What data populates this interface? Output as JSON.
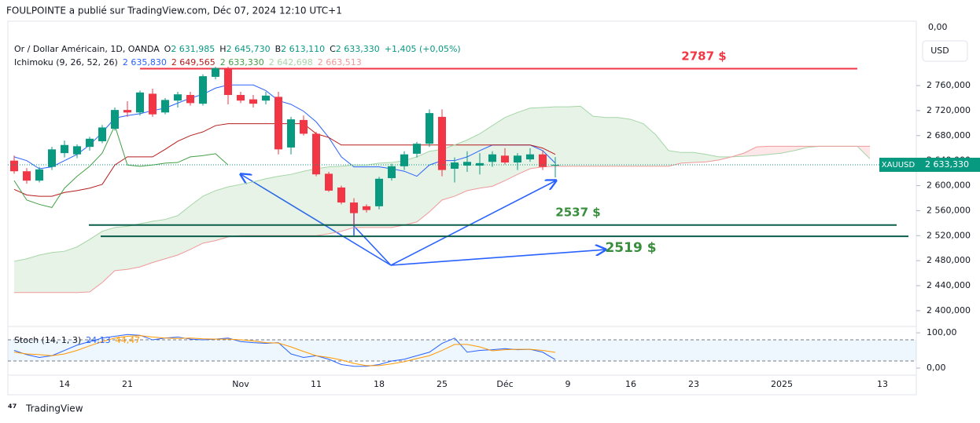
{
  "header": {
    "publisher": "FOULPOINTE a publié sur TradingView.com, Déc 07, 2024 12:10 UTC+1",
    "brand": "TradingView",
    "currency": "USD",
    "top_axis_label": "0,00"
  },
  "chart_data": [
    {
      "type": "candlestick",
      "title": "Or / Dollar Américain, 1D, OANDA",
      "ohlc_legend": [
        {
          "key": "O",
          "value": "2 631,985"
        },
        {
          "key": "H",
          "value": "2 645,730"
        },
        {
          "key": "B",
          "value": "2 613,110"
        },
        {
          "key": "C",
          "value": "2 633,330"
        }
      ],
      "change": "+1,405 (+0,05%)",
      "symbol": "XAUUSD",
      "last_label": "2 633,330",
      "up_color": "#089981",
      "down_color": "#f23645",
      "categories": [
        null,
        null,
        null,
        null,
        "14",
        null,
        null,
        null,
        null,
        "21",
        null,
        null,
        null,
        null,
        null,
        null,
        null,
        null,
        "Nov",
        null,
        null,
        null,
        null,
        null,
        "11",
        null,
        null,
        null,
        null,
        "18",
        null,
        null,
        null,
        null,
        "25",
        null,
        null,
        null,
        null,
        "Déc",
        null,
        null,
        null,
        null,
        "9",
        null,
        null,
        null,
        null,
        "16",
        null,
        null,
        null,
        null,
        "23",
        null,
        null,
        null,
        null,
        null,
        null,
        "2025",
        null,
        null,
        null,
        null,
        null,
        null,
        null,
        "13",
        null,
        null
      ],
      "open": [
        2640,
        2623,
        2608,
        2630,
        2652,
        2650,
        2662,
        2671,
        2691,
        2721,
        2717,
        2747,
        2717,
        2736,
        2745,
        2731,
        2774,
        2788,
        2745,
        2738,
        2736,
        2742,
        2661,
        2705,
        2683,
        2619,
        2597,
        2573,
        2567,
        2567,
        2612,
        2631,
        2651,
        2667,
        2710,
        2627,
        2632,
        2632,
        2638,
        2648,
        2637,
        2642,
        2650,
        2631.985,
        null,
        null,
        null,
        null,
        null,
        null,
        null,
        null,
        null,
        null,
        null,
        null,
        null,
        null,
        null,
        null,
        null,
        null,
        null,
        null,
        null,
        null,
        null,
        null,
        null,
        null,
        null,
        null
      ],
      "high": [
        2648,
        2628,
        2630,
        2662,
        2672,
        2666,
        2678,
        2697,
        2725,
        2735,
        2752,
        2755,
        2740,
        2750,
        2750,
        2778,
        2790,
        2790,
        2750,
        2745,
        2750,
        2750,
        2710,
        2712,
        2686,
        2622,
        2600,
        2580,
        2570,
        2614,
        2635,
        2655,
        2670,
        2722,
        2722,
        2645,
        2655,
        2652,
        2655,
        2660,
        2652,
        2660,
        2656,
        2645.73,
        null,
        null,
        null,
        null,
        null,
        null,
        null,
        null,
        null,
        null,
        null,
        null,
        null,
        null,
        null,
        null,
        null,
        null,
        null,
        null,
        null,
        null,
        null,
        null,
        null,
        null,
        null,
        null
      ],
      "low": [
        2619,
        2603,
        2605,
        2625,
        2645,
        2644,
        2656,
        2668,
        2688,
        2710,
        2712,
        2710,
        2714,
        2725,
        2728,
        2728,
        2770,
        2730,
        2732,
        2725,
        2730,
        2650,
        2650,
        2680,
        2615,
        2590,
        2570,
        2537,
        2557,
        2562,
        2608,
        2625,
        2645,
        2662,
        2615,
        2605,
        2622,
        2618,
        2630,
        2634,
        2625,
        2638,
        2625,
        2613.11,
        null,
        null,
        null,
        null,
        null,
        null,
        null,
        null,
        null,
        null,
        null,
        null,
        null,
        null,
        null,
        null,
        null,
        null,
        null,
        null,
        null,
        null,
        null,
        null,
        null,
        null,
        null,
        null
      ],
      "close": [
        2623,
        2608,
        2626,
        2658,
        2665,
        2663,
        2675,
        2693,
        2721,
        2717,
        2749,
        2714,
        2737,
        2746,
        2732,
        2775,
        2788,
        2745,
        2736,
        2731,
        2744,
        2658,
        2706,
        2683,
        2618,
        2592,
        2573,
        2556,
        2561,
        2611,
        2631,
        2650,
        2667,
        2716,
        2625,
        2637,
        2638,
        2636,
        2650,
        2637,
        2648,
        2650,
        2630,
        2633.33,
        null,
        null,
        null,
        null,
        null,
        null,
        null,
        null,
        null,
        null,
        null,
        null,
        null,
        null,
        null,
        null,
        null,
        null,
        null,
        null,
        null,
        null,
        null,
        null,
        null,
        null,
        null,
        null
      ],
      "ichimoku": {
        "name": "Ichimoku (9, 26, 52, 26)",
        "lines": [
          {
            "label": "2 635,830",
            "color": "#2962ff",
            "values": [
              2646,
              2640,
              2627,
              2630,
              2640,
              2650,
              2665,
              2685,
              2708,
              2712,
              2715,
              2720,
              2724,
              2732,
              2740,
              2746,
              2756,
              2761,
              2761,
              2761,
              2752,
              2736,
              2730,
              2719,
              2702,
              2677,
              2646,
              2630,
              2630,
              2630,
              2627,
              2623,
              2615,
              2633,
              2640,
              2640,
              2646,
              2656,
              2665,
              2665,
              2665,
              2665,
              2656,
              2636,
              null,
              null,
              null,
              null,
              null,
              null,
              null,
              null,
              null,
              null,
              null,
              null,
              null,
              null,
              null,
              null,
              null,
              null,
              null,
              null,
              null,
              null,
              null,
              null,
              null,
              null,
              null,
              null
            ]
          },
          {
            "label": "2 649,565",
            "color": "#b71c1c",
            "values": [
              2594,
              2585,
              2583,
              2583,
              2589,
              2592,
              2596,
              2602,
              2633,
              2646,
              2646,
              2646,
              2658,
              2671,
              2680,
              2686,
              2696,
              2699,
              2699,
              2699,
              2699,
              2699,
              2699,
              2699,
              2683,
              2677,
              2665,
              2665,
              2665,
              2665,
              2665,
              2665,
              2665,
              2665,
              2665,
              2665,
              2665,
              2665,
              2665,
              2665,
              2665,
              2665,
              2660,
              2650,
              null,
              null,
              null,
              null,
              null,
              null,
              null,
              null,
              null,
              null,
              null,
              null,
              null,
              null,
              null,
              null,
              null,
              null,
              null,
              null,
              null,
              null,
              null,
              null,
              null,
              null,
              null,
              null
            ]
          },
          {
            "label": "2 633,330",
            "color": "#43a047",
            "values": [
              2608,
              2577,
              2570,
              2565,
              2596,
              2615,
              2631,
              2652,
              2696,
              2633,
              2631,
              2633,
              2636,
              2637,
              2646,
              2648,
              2651,
              2633,
              null,
              null,
              null,
              null,
              null,
              null,
              null,
              null,
              null,
              null,
              null,
              null,
              null,
              null,
              null,
              null,
              null,
              null,
              null,
              null,
              null,
              null,
              null,
              null,
              null,
              null,
              null,
              null,
              null,
              null,
              null,
              null,
              null,
              null,
              null,
              null,
              null,
              null,
              null,
              null,
              null,
              null,
              null,
              null,
              null,
              null,
              null,
              null,
              null,
              null,
              null,
              null,
              null,
              null
            ]
          },
          {
            "label": "2 642,698",
            "color": "#a5d6a7",
            "values": [
              2479,
              2483,
              2489,
              2493,
              2495,
              2502,
              2514,
              2527,
              2533,
              2535,
              2539,
              2543,
              2546,
              2552,
              2568,
              2583,
              2592,
              2598,
              2602,
              2606,
              2611,
              2615,
              2618,
              2623,
              2627,
              2630,
              2631,
              2633,
              2633,
              2636,
              2637,
              2640,
              2646,
              2655,
              2658,
              2665,
              2673,
              2683,
              2696,
              2709,
              2717,
              2724,
              2725,
              2726,
              2726,
              2727,
              2711,
              2709,
              2709,
              2706,
              2699,
              2681,
              2656,
              2653,
              2653,
              2650,
              2646,
              2646,
              2647,
              2648,
              2650,
              2652,
              2656,
              2661,
              2663,
              2663,
              2663,
              2663,
              2643,
              null,
              null,
              null
            ]
          },
          {
            "label": "2 663,513",
            "color": "#ef9a9a",
            "values": [
              2429,
              2429,
              2429,
              2429,
              2429,
              2429,
              2430,
              2445,
              2464,
              2466,
              2470,
              2477,
              2483,
              2489,
              2498,
              2508,
              2512,
              2518,
              2520,
              2520,
              2520,
              2520,
              2520,
              2520,
              2520,
              2523,
              2527,
              2533,
              2533,
              2533,
              2533,
              2537,
              2542,
              2558,
              2577,
              2583,
              2592,
              2596,
              2599,
              2608,
              2618,
              2627,
              2630,
              2631,
              2631,
              2631,
              2631,
              2631,
              2631,
              2631,
              2631,
              2631,
              2631,
              2636,
              2637,
              2638,
              2641,
              2646,
              2652,
              2662,
              2663,
              2663,
              2663,
              2663,
              2663,
              2663,
              2663,
              2663,
              2663,
              null,
              null,
              null
            ]
          }
        ]
      },
      "levels": [
        {
          "label": "2787 $",
          "value": 2787,
          "color": "#f23645"
        },
        {
          "label": "2537 $",
          "value": 2537,
          "color": "#0b5e4a"
        },
        {
          "label": "2519 $",
          "value": 2519,
          "color": "#0b5e4a"
        }
      ],
      "ylim": [
        2376,
        2863
      ],
      "yticks": [
        {
          "value": 2760,
          "label": "2 760,000"
        },
        {
          "value": 2720,
          "label": "2 720,000"
        },
        {
          "value": 2680,
          "label": "2 680,000"
        },
        {
          "value": 2640,
          "label": "2 640,000"
        },
        {
          "value": 2600,
          "label": "2 600,000"
        },
        {
          "value": 2560,
          "label": "2 560,000"
        },
        {
          "value": 2520,
          "label": "2 520,000"
        },
        {
          "value": 2480,
          "label": "2 480,000"
        },
        {
          "value": 2440,
          "label": "2 440,000"
        },
        {
          "value": 2400,
          "label": "2 400,000"
        }
      ],
      "grid": false
    },
    {
      "type": "line",
      "title": "Stoch (14, 1, 3)",
      "series": [
        {
          "name": "24,13",
          "color": "#2962ff",
          "values": [
            50,
            38,
            30,
            35,
            50,
            65,
            75,
            85,
            90,
            95,
            93,
            80,
            85,
            88,
            82,
            80,
            82,
            85,
            75,
            72,
            70,
            72,
            40,
            30,
            35,
            25,
            10,
            5,
            5,
            10,
            20,
            25,
            35,
            45,
            70,
            85,
            45,
            50,
            52,
            55,
            52,
            53,
            45,
            24.13
          ]
        },
        {
          "name": "44,47",
          "color": "#ff9800",
          "values": [
            45,
            40,
            38,
            35,
            40,
            50,
            63,
            75,
            85,
            90,
            92,
            88,
            85,
            84,
            85,
            83,
            82,
            82,
            80,
            77,
            72,
            71,
            60,
            47,
            35,
            30,
            23,
            13,
            7,
            7,
            12,
            18,
            27,
            35,
            50,
            67,
            67,
            60,
            49,
            52,
            53,
            53,
            50,
            44.47
          ]
        }
      ],
      "bands": [
        80,
        20
      ],
      "ylim": [
        -20,
        109
      ],
      "yticks": [
        {
          "value": 100,
          "label": "100,00"
        },
        {
          "value": 0,
          "label": "0,00"
        }
      ]
    }
  ]
}
